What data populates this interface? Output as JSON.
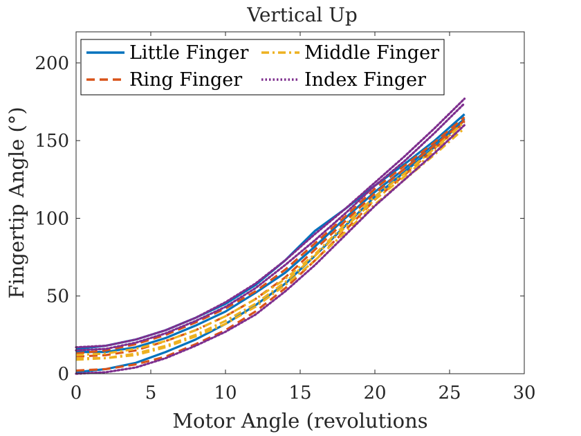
{
  "chart_data": {
    "type": "line",
    "title": "Vertical Up",
    "xlabel": "Motor Angle (revolutions",
    "ylabel": "Fingertip Angle (°)",
    "xlim": [
      0,
      30
    ],
    "ylim": [
      0,
      220
    ],
    "xticks": [
      "0",
      "5",
      "10",
      "15",
      "20",
      "25",
      "30"
    ],
    "yticks": [
      "0",
      "50",
      "100",
      "150",
      "200"
    ],
    "grid": false,
    "legend_position": "top-left",
    "series": [
      {
        "name": "Little Finger",
        "color": "#0072BD",
        "dash": "solid",
        "trials": [
          {
            "x": [
              0,
              2,
              4,
              6,
              8,
              10,
              12,
              14,
              16,
              18,
              20,
              22,
              24,
              26
            ],
            "y": [
              16,
              18,
              22,
              28,
              36,
              45,
              57,
              73,
              92,
              106,
              121,
              135,
              150,
              167
            ]
          },
          {
            "x": [
              0,
              2,
              4,
              6,
              8,
              10,
              12,
              14,
              16,
              18,
              20,
              22,
              24,
              26
            ],
            "y": [
              14,
              14,
              17,
              23,
              31,
              40,
              52,
              65,
              82,
              100,
              117,
              132,
              148,
              164
            ]
          },
          {
            "x": [
              0,
              2,
              4,
              6,
              8,
              10,
              12,
              14,
              16,
              18,
              20,
              22,
              24,
              26
            ],
            "y": [
              1,
              3,
              7,
              14,
              22,
              32,
              44,
              58,
              76,
              95,
              114,
              130,
              146,
              163
            ]
          }
        ]
      },
      {
        "name": "Ring Finger",
        "color": "#D95319",
        "dash": "dashed",
        "trials": [
          {
            "x": [
              0,
              2,
              4,
              6,
              8,
              10,
              12,
              14,
              16,
              18,
              20,
              22,
              24,
              26
            ],
            "y": [
              13,
              15,
              19,
              25,
              33,
              42,
              53,
              67,
              84,
              101,
              119,
              134,
              149,
              165
            ]
          },
          {
            "x": [
              0,
              2,
              4,
              6,
              8,
              10,
              12,
              14,
              16,
              18,
              20,
              22,
              24,
              26
            ],
            "y": [
              11,
              12,
              15,
              21,
              28,
              37,
              48,
              62,
              80,
              98,
              116,
              132,
              147,
              163
            ]
          },
          {
            "x": [
              0,
              2,
              4,
              6,
              8,
              10,
              12,
              14,
              16,
              18,
              20,
              22,
              24,
              26
            ],
            "y": [
              2,
              3,
              6,
              11,
              19,
              28,
              40,
              55,
              73,
              92,
              112,
              128,
              145,
              162
            ]
          }
        ]
      },
      {
        "name": "Middle Finger",
        "color": "#EDB120",
        "dash": "dashdot",
        "trials": [
          {
            "x": [
              0,
              2,
              4,
              6,
              8,
              10,
              12,
              14,
              16,
              18,
              20,
              22,
              24,
              26
            ],
            "y": [
              12,
              13,
              16,
              21,
              28,
              37,
              48,
              61,
              77,
              96,
              114,
              129,
              145,
              162
            ]
          },
          {
            "x": [
              0,
              2,
              4,
              6,
              8,
              10,
              12,
              14,
              16,
              18,
              20,
              22,
              24,
              26
            ],
            "y": [
              10,
              10,
              13,
              18,
              25,
              34,
              45,
              59,
              76,
              94,
              112,
              127,
              143,
              160
            ]
          },
          {
            "x": [
              0,
              2,
              4,
              6,
              8,
              10,
              12,
              14,
              16,
              18,
              20,
              22,
              24,
              26
            ],
            "y": [
              9,
              10,
              12,
              17,
              24,
              32,
              43,
              57,
              73,
              91,
              109,
              125,
              141,
              158
            ]
          }
        ]
      },
      {
        "name": "Index Finger",
        "color": "#7E2F8E",
        "dash": "dotted",
        "trials": [
          {
            "x": [
              0,
              2,
              4,
              6,
              8,
              10,
              12,
              14,
              16,
              18,
              20,
              22,
              24,
              26
            ],
            "y": [
              17,
              18,
              22,
              28,
              36,
              46,
              58,
              73,
              90,
              106,
              123,
              140,
              158,
              177
            ]
          },
          {
            "x": [
              0,
              2,
              4,
              6,
              8,
              10,
              12,
              14,
              16,
              18,
              20,
              22,
              24,
              26
            ],
            "y": [
              15,
              16,
              20,
              26,
              34,
              43,
              55,
              70,
              86,
              103,
              121,
              137,
              155,
              174
            ]
          },
          {
            "x": [
              0,
              2,
              4,
              6,
              8,
              10,
              12,
              14,
              16,
              18,
              20,
              22,
              24,
              26
            ],
            "y": [
              0,
              1,
              4,
              10,
              18,
              27,
              38,
              53,
              70,
              89,
              108,
              125,
              142,
              160
            ]
          }
        ]
      }
    ]
  }
}
